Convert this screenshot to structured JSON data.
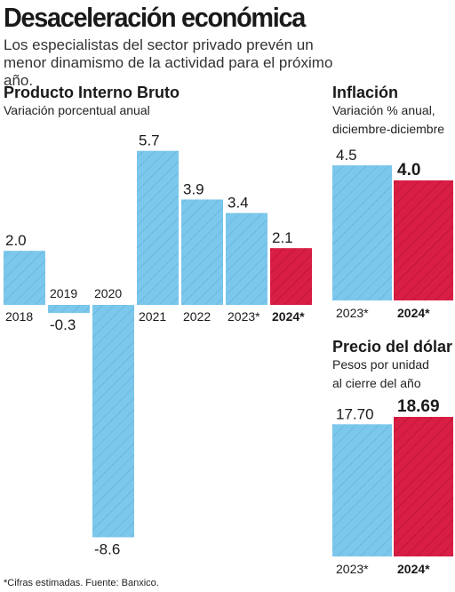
{
  "header": {
    "title": "Desaceleración económica",
    "subtitle": "Los especialistas del sector privado prevén un menor dinamismo de la actividad para el próximo año."
  },
  "footnote": "*Cifras estimadas. Fuente: Banxico.",
  "colors": {
    "bar": "#7cc7ec",
    "hatch": "#5fb1dc",
    "highlight": "#d91e45",
    "highlight_hatch": "#b5112f"
  },
  "chart_data": [
    {
      "type": "bar",
      "title": "Producto Interno Bruto",
      "subtitle": "Variación porcentual anual",
      "categories": [
        "2018",
        "2019",
        "2020",
        "2021",
        "2022",
        "2023*",
        "2024*"
      ],
      "values": [
        2.0,
        -0.3,
        -8.6,
        5.7,
        3.9,
        3.4,
        2.1
      ],
      "labels": [
        "2.0",
        "-0.3",
        "-8.6",
        "5.7",
        "3.9",
        "3.4",
        "2.1"
      ],
      "highlight": [
        false,
        false,
        false,
        false,
        false,
        false,
        true
      ]
    },
    {
      "type": "bar",
      "title": "Inflación",
      "subtitle_lines": [
        "Variación % anual,",
        "diciembre-diciembre"
      ],
      "categories": [
        "2023*",
        "2024*"
      ],
      "values": [
        4.5,
        4.0
      ],
      "labels": [
        "4.5",
        "4.0"
      ],
      "highlight": [
        false,
        true
      ]
    },
    {
      "type": "bar",
      "title": "Precio del dólar",
      "subtitle_lines": [
        "Pesos por unidad",
        "al cierre del año"
      ],
      "categories": [
        "2023*",
        "2024*"
      ],
      "values": [
        17.7,
        18.69
      ],
      "labels": [
        "17.70",
        "18.69"
      ],
      "highlight": [
        false,
        true
      ]
    }
  ]
}
